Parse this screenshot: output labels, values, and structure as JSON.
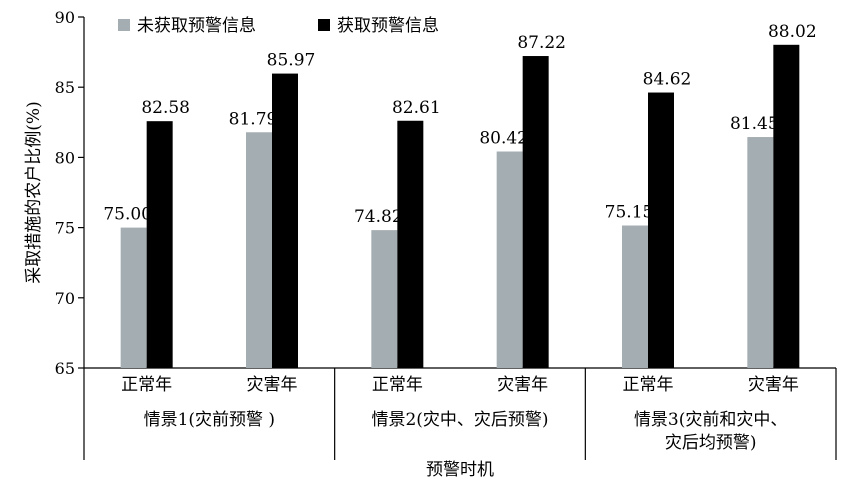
{
  "chart_data": {
    "type": "bar",
    "ylabel": "采取措施的农户比例(%)",
    "xlabel": "预警时机",
    "ylim": [
      65,
      90
    ],
    "yticks": [
      65,
      70,
      75,
      80,
      85,
      90
    ],
    "grid": false,
    "legend_position": "top-left",
    "categories": [
      "正常年",
      "灾害年",
      "正常年",
      "灾害年",
      "正常年",
      "灾害年"
    ],
    "groups": [
      {
        "lines": [
          "情景1(灾前预警 )"
        ]
      },
      {
        "lines": [
          "情景2(灾中、灾后预警)"
        ]
      },
      {
        "lines": [
          "情景3(灾前和灾中、",
          "灾后均预警)"
        ]
      }
    ],
    "series": [
      {
        "name": "未获取预警信息",
        "color": "#a4adb1",
        "values": [
          75.0,
          81.79,
          74.82,
          80.42,
          75.15,
          81.45
        ],
        "labels": [
          "75.00",
          "81.79",
          "74.82",
          "80.42",
          "75.15",
          "81.45"
        ]
      },
      {
        "name": "获取预警信息",
        "color": "#000000",
        "values": [
          82.58,
          85.97,
          82.61,
          87.22,
          84.62,
          88.02
        ],
        "labels": [
          "82.58",
          "85.97",
          "82.61",
          "87.22",
          "84.62",
          "88.02"
        ]
      }
    ]
  }
}
